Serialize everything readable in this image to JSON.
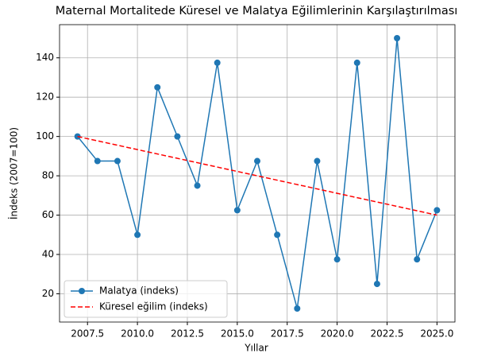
{
  "chart_data": {
    "type": "line",
    "title": "Maternal Mortalitede Küresel ve Malatya Eğilimlerinin Karşılaştırılması",
    "xlabel": "Yıllar",
    "ylabel": "İndeks (2007=100)",
    "x": [
      2007,
      2008,
      2009,
      2010,
      2011,
      2012,
      2013,
      2014,
      2015,
      2016,
      2017,
      2018,
      2019,
      2020,
      2021,
      2022,
      2023,
      2024,
      2025
    ],
    "series": [
      {
        "name": "Malatya (indeks)",
        "color": "#1f77b4",
        "style": "solid",
        "marker": true,
        "values": [
          100,
          87.5,
          87.5,
          50,
          125,
          100,
          75,
          137.5,
          62.5,
          87.5,
          50,
          12.5,
          87.5,
          37.5,
          137.5,
          25,
          150,
          37.5,
          62.5
        ]
      },
      {
        "name": "Küresel eğilim (indeks)",
        "color": "#ff0000",
        "style": "dashed",
        "marker": false,
        "x": [
          2007,
          2025
        ],
        "values": [
          100,
          60
        ]
      }
    ],
    "xlim": [
      2006.1,
      2025.9
    ],
    "ylim": [
      5.625,
      156.875
    ],
    "xticks": [
      {
        "value": 2007.5,
        "label": "2007.5"
      },
      {
        "value": 2010,
        "label": "2010.0"
      },
      {
        "value": 2012.5,
        "label": "2012.5"
      },
      {
        "value": 2015,
        "label": "2015.0"
      },
      {
        "value": 2017.5,
        "label": "2017.5"
      },
      {
        "value": 2020,
        "label": "2020.0"
      },
      {
        "value": 2022.5,
        "label": "2022.5"
      },
      {
        "value": 2025,
        "label": "2025.0"
      }
    ],
    "yticks": [
      20,
      40,
      60,
      80,
      100,
      120,
      140
    ],
    "grid": true,
    "legend": "lower left"
  }
}
